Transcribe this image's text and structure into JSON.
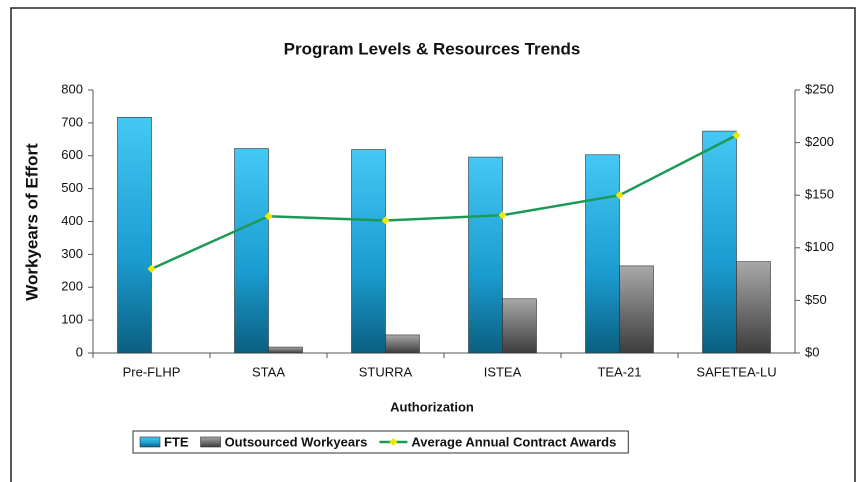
{
  "chart_data": {
    "type": "bar_line",
    "title": "Program Levels & Resources Trends",
    "x_label": "Authorization",
    "y_label": "Workyears of Effort",
    "categories": [
      "Pre-FLHP",
      "STAA",
      "STURRA",
      "ISTEA",
      "TEA-21",
      "SAFETEA-LU"
    ],
    "series": [
      {
        "name": "FTE",
        "color": "#1fa6d8",
        "kind": "bar",
        "values": [
          717,
          622,
          619,
          596,
          603,
          675
        ]
      },
      {
        "name": "Outsourced Workyears",
        "color": "#7a7a7a",
        "kind": "bar",
        "values": [
          0,
          18,
          55,
          165,
          265,
          278
        ]
      },
      {
        "name": "Average Annual Contract Awards",
        "color": "#1a9a55",
        "marker_color": "#f0e800",
        "kind": "line",
        "axis": "y2",
        "values": [
          80,
          130,
          126,
          131,
          150,
          207
        ]
      }
    ],
    "ylim": [
      0,
      800
    ],
    "yticks": [
      0,
      100,
      200,
      300,
      400,
      500,
      600,
      700,
      800
    ],
    "y2lim": [
      0,
      250
    ],
    "y2ticks": [
      {
        "value": 0,
        "label": "$0"
      },
      {
        "value": 50,
        "label": "$50"
      },
      {
        "value": 100,
        "label": "$100"
      },
      {
        "value": 150,
        "label": "$150"
      },
      {
        "value": 200,
        "label": "$200"
      },
      {
        "value": 250,
        "label": "$250"
      }
    ],
    "legend": "bottom",
    "grid": false
  }
}
